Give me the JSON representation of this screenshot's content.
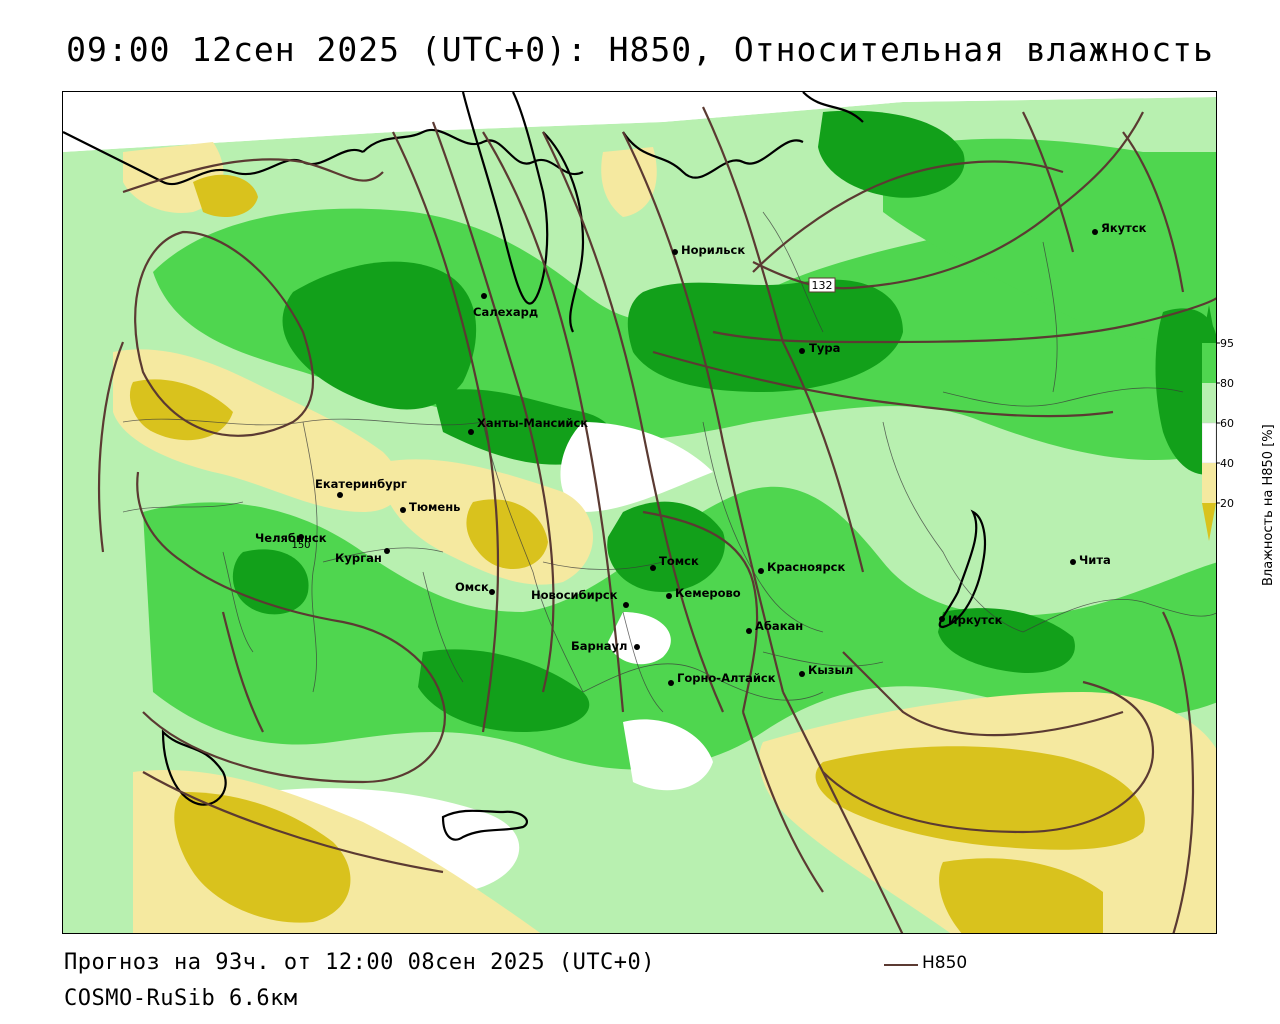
{
  "title": "09:00 12сен 2025 (UTC+0): H850, Относительная влажность",
  "footer": {
    "forecast": "Прогноз на 93ч. от 12:00 08сен 2025 (UTC+0)",
    "model": "COSMO-RuSib 6.6км"
  },
  "legend": {
    "line_label": "H850",
    "line_color": "#5b3a32"
  },
  "colorbar": {
    "title": "Влажность на H850 [%]",
    "ticks": [
      "95",
      "80",
      "60",
      "40",
      "20"
    ],
    "colors": {
      "lt20": "#d9c21d",
      "20_40": "#f5e9a0",
      "40_60": "#ffffff",
      "60_80": "#b8f0b0",
      "80_95": "#4fd64f",
      "gt95": "#12a01a"
    }
  },
  "contour_labels": [
    "132",
    "150"
  ],
  "cities": [
    {
      "name": "Якутск"
    },
    {
      "name": "Норильск"
    },
    {
      "name": "Салехард"
    },
    {
      "name": "Тура"
    },
    {
      "name": "Ханты-Мансийск"
    },
    {
      "name": "Екатеринбург"
    },
    {
      "name": "Тюмень"
    },
    {
      "name": "Челябинск"
    },
    {
      "name": "Курган"
    },
    {
      "name": "Омск"
    },
    {
      "name": "Новосибирск"
    },
    {
      "name": "Томск"
    },
    {
      "name": "Кемерово"
    },
    {
      "name": "Красноярск"
    },
    {
      "name": "Барнаул"
    },
    {
      "name": "Абакан"
    },
    {
      "name": "Горно-Алтайск"
    },
    {
      "name": "Кызыл"
    },
    {
      "name": "Иркутск"
    },
    {
      "name": "Чита"
    }
  ]
}
